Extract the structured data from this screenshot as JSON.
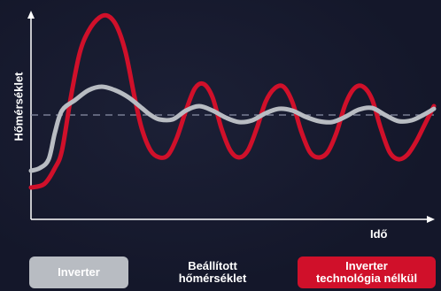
{
  "chart_data": {
    "type": "line",
    "xlabel": "Idő",
    "ylabel": "Hőmérséklet",
    "x_ticks_shown": false,
    "y_ticks_shown": false,
    "grid": false,
    "reference_line": {
      "name": "Beállított hőmérséklet",
      "style": "dashed",
      "color": "#8a90a6"
    },
    "series": [
      {
        "name": "Inverter",
        "color": "#b8bcc2",
        "points": [
          [
            35,
            193
          ],
          [
            45,
            190
          ],
          [
            55,
            180
          ],
          [
            62,
            150
          ],
          [
            70,
            125
          ],
          [
            85,
            113
          ],
          [
            100,
            102
          ],
          [
            115,
            98
          ],
          [
            130,
            102
          ],
          [
            145,
            110
          ],
          [
            160,
            122
          ],
          [
            170,
            130
          ],
          [
            180,
            135
          ],
          [
            195,
            135
          ],
          [
            210,
            125
          ],
          [
            225,
            120
          ],
          [
            240,
            125
          ],
          [
            255,
            133
          ],
          [
            270,
            138
          ],
          [
            285,
            136
          ],
          [
            300,
            128
          ],
          [
            315,
            123
          ],
          [
            330,
            125
          ],
          [
            345,
            132
          ],
          [
            360,
            137
          ],
          [
            375,
            138
          ],
          [
            390,
            132
          ],
          [
            405,
            124
          ],
          [
            420,
            122
          ],
          [
            435,
            130
          ],
          [
            450,
            137
          ],
          [
            465,
            136
          ],
          [
            478,
            130
          ],
          [
            490,
            123
          ]
        ]
      },
      {
        "name": "Inverter technológia nélkül",
        "color": "#d0102a",
        "points": [
          [
            35,
            212
          ],
          [
            50,
            208
          ],
          [
            62,
            190
          ],
          [
            70,
            170
          ],
          [
            80,
            110
          ],
          [
            90,
            60
          ],
          [
            100,
            35
          ],
          [
            112,
            20
          ],
          [
            122,
            18
          ],
          [
            132,
            30
          ],
          [
            142,
            60
          ],
          [
            152,
            110
          ],
          [
            160,
            145
          ],
          [
            170,
            170
          ],
          [
            180,
            178
          ],
          [
            190,
            175
          ],
          [
            200,
            155
          ],
          [
            210,
            125
          ],
          [
            220,
            100
          ],
          [
            230,
            95
          ],
          [
            240,
            110
          ],
          [
            250,
            145
          ],
          [
            260,
            170
          ],
          [
            270,
            178
          ],
          [
            280,
            170
          ],
          [
            290,
            145
          ],
          [
            300,
            115
          ],
          [
            310,
            100
          ],
          [
            320,
            98
          ],
          [
            330,
            115
          ],
          [
            340,
            148
          ],
          [
            350,
            172
          ],
          [
            360,
            178
          ],
          [
            370,
            172
          ],
          [
            380,
            150
          ],
          [
            390,
            118
          ],
          [
            400,
            100
          ],
          [
            410,
            98
          ],
          [
            420,
            112
          ],
          [
            430,
            145
          ],
          [
            440,
            172
          ],
          [
            450,
            180
          ],
          [
            460,
            175
          ],
          [
            470,
            160
          ],
          [
            480,
            140
          ],
          [
            490,
            120
          ]
        ]
      }
    ]
  },
  "legend": {
    "inverter": "Inverter",
    "setpoint_line1": "Beállított",
    "setpoint_line2": "hőmérséklet",
    "no_inverter_line1": "Inverter",
    "no_inverter_line2": "technológia nélkül"
  },
  "colors": {
    "background": "#14172a",
    "axis": "#ffffff",
    "inverter": "#b8bcc2",
    "no_inverter": "#d0102a",
    "setpoint": "#8a90a6"
  }
}
